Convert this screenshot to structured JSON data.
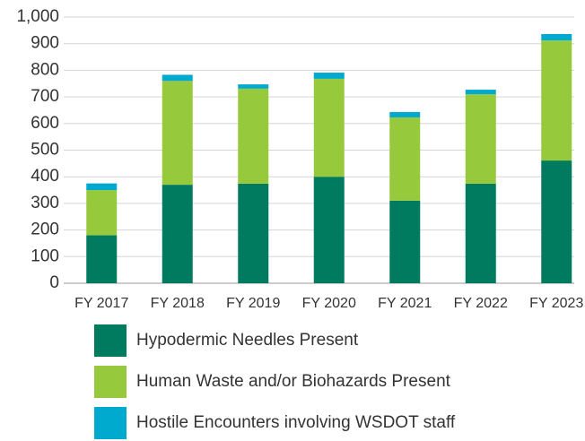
{
  "chart_data": {
    "type": "stacked_bar",
    "categories": [
      "FY 2017",
      "FY 2018",
      "FY 2019",
      "FY 2020",
      "FY 2021",
      "FY 2022",
      "FY 2023"
    ],
    "series": [
      {
        "name": "Hypodermic Needles Present",
        "color": "#007b5f",
        "values": [
          180,
          370,
          374,
          400,
          310,
          374,
          461
        ]
      },
      {
        "name": "Human Waste and/or Biohazards Present",
        "color": "#97c93d",
        "values": [
          170,
          390,
          357,
          368,
          313,
          336,
          451
        ]
      },
      {
        "name": "Hostile Encounters involving WSDOT staff",
        "color": "#00a9ce",
        "values": [
          25,
          23,
          16,
          23,
          20,
          17,
          24
        ]
      }
    ],
    "ylim": [
      0,
      1000
    ],
    "yticks": [
      0,
      100,
      200,
      300,
      400,
      500,
      600,
      700,
      800,
      900,
      {
        "value": 1000,
        "label": "1,000"
      }
    ],
    "grid": true
  }
}
